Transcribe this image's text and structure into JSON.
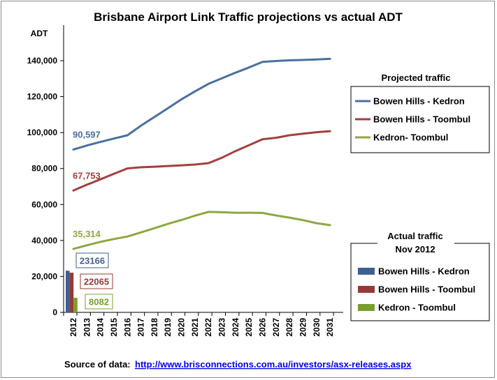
{
  "chart_data": {
    "type": "line",
    "title": "Brisbane Airport Link Traffic projections vs actual ADT",
    "ylabel": "ADT",
    "ylim": [
      0,
      140000
    ],
    "yticks": [
      0,
      20000,
      40000,
      60000,
      80000,
      100000,
      120000,
      140000
    ],
    "ytick_labels": [
      "0",
      "20,000",
      "40,000",
      "60,000",
      "80,000",
      "100,000",
      "120,000",
      "140,000"
    ],
    "x": [
      "2012",
      "2013",
      "2014",
      "2015",
      "2016",
      "2017",
      "2018",
      "2019",
      "2020",
      "2021",
      "2022",
      "2023",
      "2024",
      "2025",
      "2026",
      "2027",
      "2028",
      "2029",
      "2030",
      "2031"
    ],
    "projected_legend_title": "Projected traffic",
    "series": [
      {
        "name": "Bowen Hills - Kedron",
        "color": "#4a6fa0",
        "start_label": "90,597",
        "values": [
          90597,
          92800,
          94800,
          96700,
          98500,
          103800,
          108700,
          113500,
          118500,
          122900,
          127100,
          130200,
          133300,
          136200,
          139300,
          139800,
          140200,
          140400,
          140700,
          141000
        ]
      },
      {
        "name": "Bowen Hills - Toombul",
        "color": "#a2403d",
        "start_label": "67,753",
        "values": [
          67753,
          71000,
          74000,
          77100,
          80100,
          80700,
          81000,
          81400,
          81800,
          82200,
          83000,
          86000,
          89700,
          93000,
          96300,
          97100,
          98500,
          99400,
          100200,
          100800
        ]
      },
      {
        "name": "Kedron- Toombul",
        "color": "#8ca842",
        "start_label": "35,314",
        "values": [
          35314,
          37300,
          39200,
          40800,
          42200,
          44500,
          46800,
          49200,
          51400,
          53800,
          55900,
          55700,
          55400,
          55400,
          55300,
          53900,
          52700,
          51300,
          49600,
          48500
        ]
      }
    ],
    "actual_legend_title": "Actual traffic",
    "actual_legend_subtitle": "Nov 2012",
    "actual": [
      {
        "name": "Bowen Hills - Kedron",
        "value": 23166,
        "label": "23166",
        "color": "#3f5f8f"
      },
      {
        "name": "Bowen Hills - Toombul",
        "value": 22065,
        "label": "22065",
        "color": "#963a38"
      },
      {
        "name": "Kedron - Toombul",
        "value": 8082,
        "label": "8082",
        "color": "#76a02d"
      }
    ]
  },
  "footer": {
    "source_label": "Source of data:",
    "source_url": "http://www.brisconnections.com.au/investors/asx-releases.aspx"
  }
}
